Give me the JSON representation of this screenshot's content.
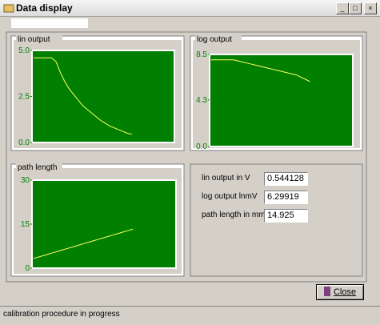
{
  "window": {
    "title": "Data display"
  },
  "chart_data": [
    {
      "type": "line",
      "title": "lin output",
      "color": "#ffff66",
      "background": "#007f00",
      "values": [
        4.6,
        4.6,
        4.6,
        4.6,
        4.6,
        4.4,
        3.8,
        3.3,
        2.9,
        2.6,
        2.3,
        2.0,
        1.8,
        1.6,
        1.4,
        1.2,
        1.05,
        0.9,
        0.8,
        0.7,
        0.6,
        0.5,
        0.45
      ],
      "ylim": [
        0,
        5
      ],
      "yticks": [
        {
          "value": 0,
          "label": "0.0"
        },
        {
          "value": 2.5,
          "label": "2.5"
        },
        {
          "value": 5,
          "label": "5.0"
        }
      ]
    },
    {
      "type": "line",
      "title": "log output",
      "color": "#ffff66",
      "background": "#007f00",
      "values": [
        8.0,
        8.0,
        8.0,
        8.0,
        8.0,
        8.0,
        7.9,
        7.8,
        7.7,
        7.6,
        7.5,
        7.4,
        7.3,
        7.2,
        7.1,
        7.0,
        6.9,
        6.8,
        6.7,
        6.6,
        6.4,
        6.2,
        6.0
      ],
      "ylim": [
        0,
        8.5
      ],
      "yticks": [
        {
          "value": 0,
          "label": "0.0"
        },
        4.3,
        8.5
      ]
    },
    {
      "type": "line",
      "title": "path length",
      "color": "#ffff66",
      "background": "#007f00",
      "values": [
        3.3,
        3.8,
        4.3,
        4.8,
        5.3,
        5.8,
        6.3,
        6.8,
        7.3,
        7.8,
        8.3,
        8.8,
        9.3,
        9.8,
        10.3,
        10.8,
        11.3,
        11.8,
        12.3,
        12.8,
        13.3
      ],
      "ylim": [
        0,
        30
      ],
      "yticks": [
        0,
        15,
        30
      ]
    }
  ],
  "fields": [
    {
      "label": "lin output in V",
      "value": "0.544128"
    },
    {
      "label": "log output lnmV",
      "value": "6.29919"
    },
    {
      "label": "path length in mm",
      "value": "14.925"
    }
  ],
  "button": "Close",
  "status": "calibration procedure in progress"
}
